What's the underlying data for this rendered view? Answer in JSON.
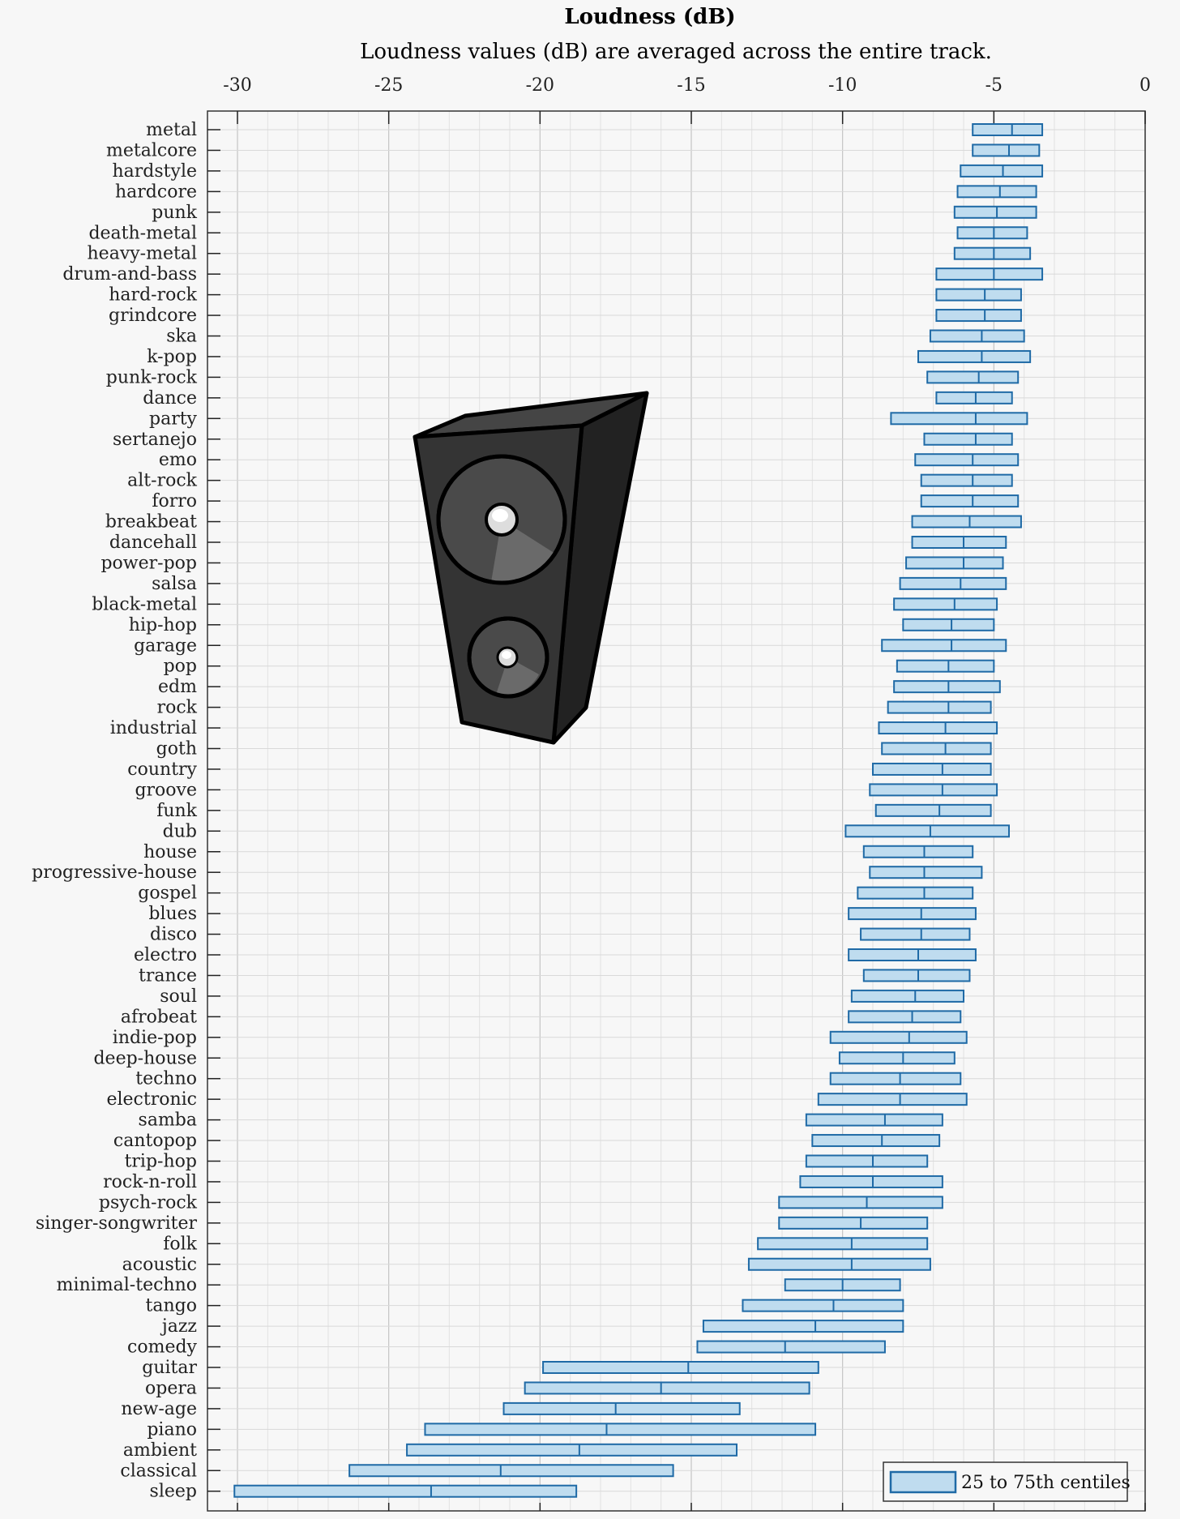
{
  "chart_data": {
    "type": "box",
    "title": "Loudness (dB)",
    "subtitle": "Loudness values (dB) are averaged across the entire track.",
    "xlim": [
      -30,
      0
    ],
    "xticks": [
      -30,
      -25,
      -20,
      -15,
      -10,
      -5,
      0
    ],
    "xtick_labels": [
      "-30",
      "-25",
      "-20",
      "-15",
      "-10",
      "-5",
      "0"
    ],
    "x_axis_position": "top",
    "grid": true,
    "legend": {
      "label": "25 to 75th centiles",
      "placement": "bottom-right"
    },
    "colors": {
      "box_fill": "#bfdcef",
      "box_stroke": "#1f6aa6",
      "grid": "#d0d0d0",
      "background": "#f7f7f7"
    },
    "decoration": "loudspeaker-icon",
    "categories": [
      "metal",
      "metalcore",
      "hardstyle",
      "hardcore",
      "punk",
      "death-metal",
      "heavy-metal",
      "drum-and-bass",
      "hard-rock",
      "grindcore",
      "ska",
      "k-pop",
      "punk-rock",
      "dance",
      "party",
      "sertanejo",
      "emo",
      "alt-rock",
      "forro",
      "breakbeat",
      "dancehall",
      "power-pop",
      "salsa",
      "black-metal",
      "hip-hop",
      "garage",
      "pop",
      "edm",
      "rock",
      "industrial",
      "goth",
      "country",
      "groove",
      "funk",
      "dub",
      "house",
      "progressive-house",
      "gospel",
      "blues",
      "disco",
      "electro",
      "trance",
      "soul",
      "afrobeat",
      "indie-pop",
      "deep-house",
      "techno",
      "electronic",
      "samba",
      "cantopop",
      "trip-hop",
      "rock-n-roll",
      "psych-rock",
      "singer-songwriter",
      "folk",
      "acoustic",
      "minimal-techno",
      "tango",
      "jazz",
      "comedy",
      "guitar",
      "opera",
      "new-age",
      "piano",
      "ambient",
      "classical",
      "sleep"
    ],
    "series": [
      {
        "name": "25 to 75th centiles",
        "stats": [
          {
            "q1": -5.7,
            "median": -4.4,
            "q3": -3.4
          },
          {
            "q1": -5.7,
            "median": -4.5,
            "q3": -3.5
          },
          {
            "q1": -6.1,
            "median": -4.7,
            "q3": -3.4
          },
          {
            "q1": -6.2,
            "median": -4.8,
            "q3": -3.6
          },
          {
            "q1": -6.3,
            "median": -4.9,
            "q3": -3.6
          },
          {
            "q1": -6.2,
            "median": -5.0,
            "q3": -3.9
          },
          {
            "q1": -6.3,
            "median": -5.0,
            "q3": -3.8
          },
          {
            "q1": -6.9,
            "median": -5.0,
            "q3": -3.4
          },
          {
            "q1": -6.9,
            "median": -5.3,
            "q3": -4.1
          },
          {
            "q1": -6.9,
            "median": -5.3,
            "q3": -4.1
          },
          {
            "q1": -7.1,
            "median": -5.4,
            "q3": -4.0
          },
          {
            "q1": -7.5,
            "median": -5.4,
            "q3": -3.8
          },
          {
            "q1": -7.2,
            "median": -5.5,
            "q3": -4.2
          },
          {
            "q1": -6.9,
            "median": -5.6,
            "q3": -4.4
          },
          {
            "q1": -8.4,
            "median": -5.6,
            "q3": -3.9
          },
          {
            "q1": -7.3,
            "median": -5.6,
            "q3": -4.4
          },
          {
            "q1": -7.6,
            "median": -5.7,
            "q3": -4.2
          },
          {
            "q1": -7.4,
            "median": -5.7,
            "q3": -4.4
          },
          {
            "q1": -7.4,
            "median": -5.7,
            "q3": -4.2
          },
          {
            "q1": -7.7,
            "median": -5.8,
            "q3": -4.1
          },
          {
            "q1": -7.7,
            "median": -6.0,
            "q3": -4.6
          },
          {
            "q1": -7.9,
            "median": -6.0,
            "q3": -4.7
          },
          {
            "q1": -8.1,
            "median": -6.1,
            "q3": -4.6
          },
          {
            "q1": -8.3,
            "median": -6.3,
            "q3": -4.9
          },
          {
            "q1": -8.0,
            "median": -6.4,
            "q3": -5.0
          },
          {
            "q1": -8.7,
            "median": -6.4,
            "q3": -4.6
          },
          {
            "q1": -8.2,
            "median": -6.5,
            "q3": -5.0
          },
          {
            "q1": -8.3,
            "median": -6.5,
            "q3": -4.8
          },
          {
            "q1": -8.5,
            "median": -6.5,
            "q3": -5.1
          },
          {
            "q1": -8.8,
            "median": -6.6,
            "q3": -4.9
          },
          {
            "q1": -8.7,
            "median": -6.6,
            "q3": -5.1
          },
          {
            "q1": -9.0,
            "median": -6.7,
            "q3": -5.1
          },
          {
            "q1": -9.1,
            "median": -6.7,
            "q3": -4.9
          },
          {
            "q1": -8.9,
            "median": -6.8,
            "q3": -5.1
          },
          {
            "q1": -9.9,
            "median": -7.1,
            "q3": -4.5
          },
          {
            "q1": -9.3,
            "median": -7.3,
            "q3": -5.7
          },
          {
            "q1": -9.1,
            "median": -7.3,
            "q3": -5.4
          },
          {
            "q1": -9.5,
            "median": -7.3,
            "q3": -5.7
          },
          {
            "q1": -9.8,
            "median": -7.4,
            "q3": -5.6
          },
          {
            "q1": -9.4,
            "median": -7.4,
            "q3": -5.8
          },
          {
            "q1": -9.8,
            "median": -7.5,
            "q3": -5.6
          },
          {
            "q1": -9.3,
            "median": -7.5,
            "q3": -5.8
          },
          {
            "q1": -9.7,
            "median": -7.6,
            "q3": -6.0
          },
          {
            "q1": -9.8,
            "median": -7.7,
            "q3": -6.1
          },
          {
            "q1": -10.4,
            "median": -7.8,
            "q3": -5.9
          },
          {
            "q1": -10.1,
            "median": -8.0,
            "q3": -6.3
          },
          {
            "q1": -10.4,
            "median": -8.1,
            "q3": -6.1
          },
          {
            "q1": -10.8,
            "median": -8.1,
            "q3": -5.9
          },
          {
            "q1": -11.2,
            "median": -8.6,
            "q3": -6.7
          },
          {
            "q1": -11.0,
            "median": -8.7,
            "q3": -6.8
          },
          {
            "q1": -11.2,
            "median": -9.0,
            "q3": -7.2
          },
          {
            "q1": -11.4,
            "median": -9.0,
            "q3": -6.7
          },
          {
            "q1": -12.1,
            "median": -9.2,
            "q3": -6.7
          },
          {
            "q1": -12.1,
            "median": -9.4,
            "q3": -7.2
          },
          {
            "q1": -12.8,
            "median": -9.7,
            "q3": -7.2
          },
          {
            "q1": -13.1,
            "median": -9.7,
            "q3": -7.1
          },
          {
            "q1": -11.9,
            "median": -10.0,
            "q3": -8.1
          },
          {
            "q1": -13.3,
            "median": -10.3,
            "q3": -8.0
          },
          {
            "q1": -14.6,
            "median": -10.9,
            "q3": -8.0
          },
          {
            "q1": -14.8,
            "median": -11.9,
            "q3": -8.6
          },
          {
            "q1": -19.9,
            "median": -15.1,
            "q3": -10.8
          },
          {
            "q1": -20.5,
            "median": -16.0,
            "q3": -11.1
          },
          {
            "q1": -21.2,
            "median": -17.5,
            "q3": -13.4
          },
          {
            "q1": -23.8,
            "median": -17.8,
            "q3": -10.9
          },
          {
            "q1": -24.4,
            "median": -18.7,
            "q3": -13.5
          },
          {
            "q1": -26.3,
            "median": -21.3,
            "q3": -15.6
          },
          {
            "q1": -30.1,
            "median": -23.6,
            "q3": -18.8
          }
        ]
      }
    ]
  }
}
